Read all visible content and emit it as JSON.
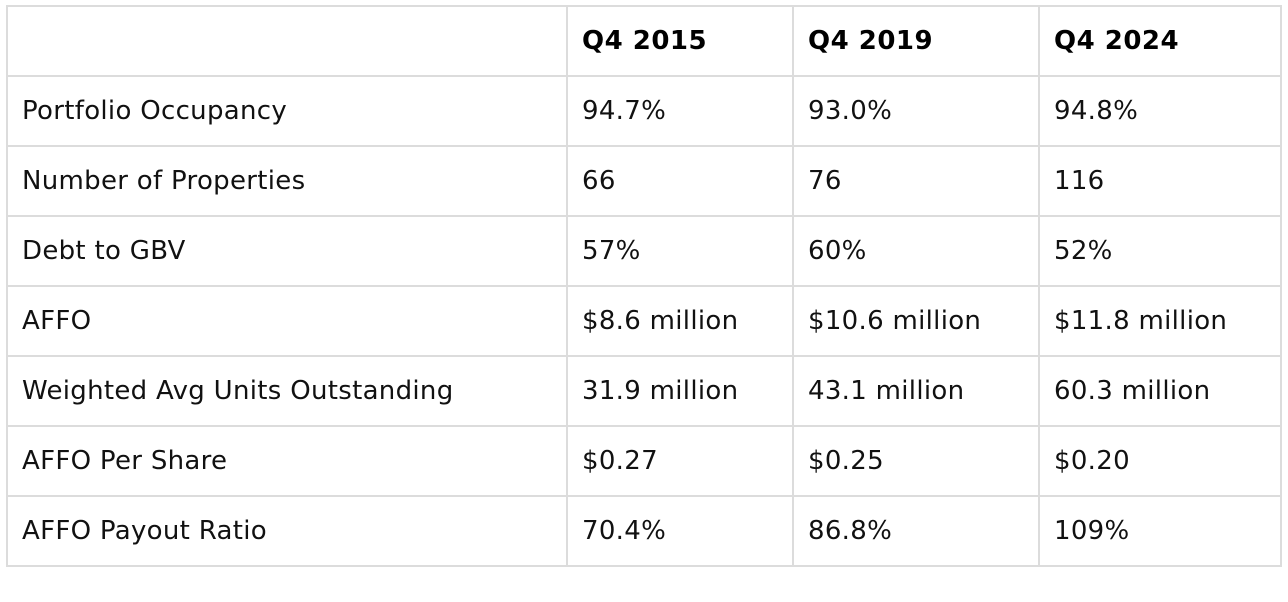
{
  "table": {
    "columns": [
      "",
      "Q4 2015",
      "Q4 2019",
      "Q4 2024"
    ],
    "rows": [
      {
        "label": "Portfolio Occupancy",
        "values": [
          "94.7%",
          "93.0%",
          "94.8%"
        ]
      },
      {
        "label": "Number of Properties",
        "values": [
          "66",
          "76",
          "116"
        ]
      },
      {
        "label": "Debt to GBV",
        "values": [
          "57%",
          "60%",
          "52%"
        ]
      },
      {
        "label": "AFFO",
        "values": [
          "$8.6 million",
          "$10.6 million",
          "$11.8 million"
        ]
      },
      {
        "label": "Weighted Avg Units Outstanding",
        "values": [
          "31.9 million",
          "43.1 million",
          "60.3 million"
        ]
      },
      {
        "label": "AFFO Per Share",
        "values": [
          "$0.27",
          "$0.25",
          "$0.20"
        ]
      },
      {
        "label": "AFFO Payout Ratio",
        "values": [
          "70.4%",
          "86.8%",
          "109%"
        ]
      }
    ]
  }
}
